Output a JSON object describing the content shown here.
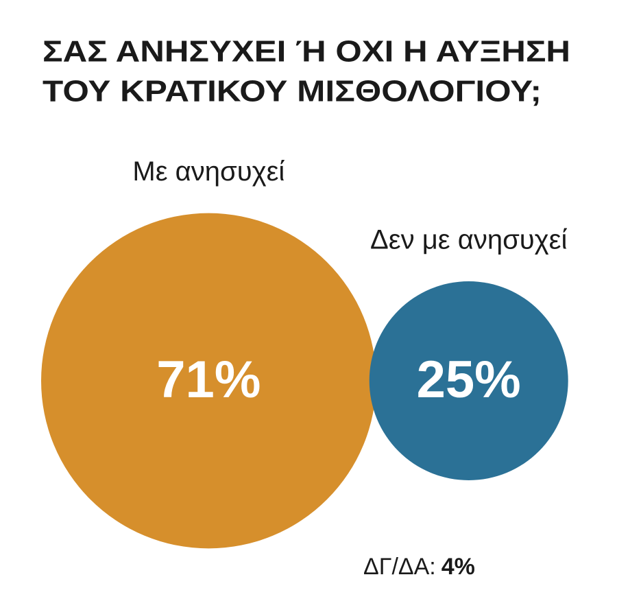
{
  "chart_data": {
    "type": "bubble",
    "title": [
      "ΣΑΣ ΑΝΗΣΥΧΕΙ Ή ΟΧΙ Η ΑΥΞΗΣΗ",
      "ΤΟΥ ΚΡΑΤΙΚΟΥ ΜΙΣΘΟΛΟΓΙΟΥ;"
    ],
    "categories": [
      "Με ανησυχεί",
      "Δεν με ανησυχεί"
    ],
    "values": [
      71,
      25
    ],
    "value_labels": [
      "71%",
      "25%"
    ],
    "colors": [
      "#d68f2c",
      "#2b7196"
    ],
    "note": {
      "label": "ΔΓ/ΔΑ:",
      "value": 4,
      "value_label": "4%"
    }
  }
}
